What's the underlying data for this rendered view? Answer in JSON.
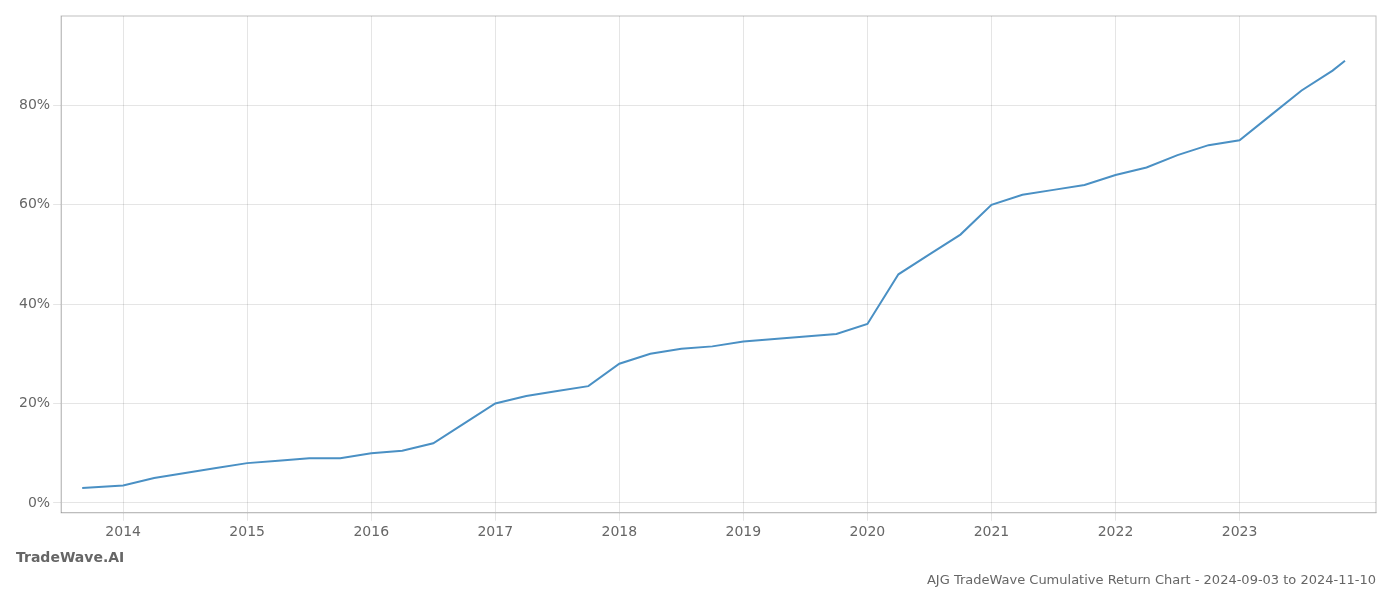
{
  "chart_data": {
    "type": "line",
    "title": "AJG TradeWave Cumulative Return Chart - 2024-09-03 to 2024-11-10",
    "annotations": [
      "TradeWave.AI"
    ],
    "x": [
      2013.67,
      2014.0,
      2014.25,
      2014.5,
      2014.75,
      2015.0,
      2015.25,
      2015.5,
      2015.75,
      2016.0,
      2016.25,
      2016.5,
      2016.75,
      2017.0,
      2017.25,
      2017.5,
      2017.75,
      2018.0,
      2018.25,
      2018.5,
      2018.75,
      2019.0,
      2019.25,
      2019.5,
      2019.75,
      2020.0,
      2020.25,
      2020.5,
      2020.75,
      2021.0,
      2021.25,
      2021.5,
      2021.75,
      2022.0,
      2022.25,
      2022.5,
      2022.75,
      2023.0,
      2023.25,
      2023.5,
      2023.75,
      2023.85
    ],
    "values": [
      0.03,
      0.035,
      0.05,
      0.06,
      0.07,
      0.08,
      0.085,
      0.09,
      0.09,
      0.1,
      0.105,
      0.12,
      0.16,
      0.2,
      0.215,
      0.225,
      0.235,
      0.28,
      0.3,
      0.31,
      0.315,
      0.325,
      0.33,
      0.335,
      0.34,
      0.36,
      0.46,
      0.5,
      0.54,
      0.6,
      0.62,
      0.63,
      0.64,
      0.66,
      0.675,
      0.7,
      0.72,
      0.73,
      0.78,
      0.83,
      0.87,
      0.89
    ],
    "color": "#4a90c4",
    "xlim": [
      2013.5,
      2024.1
    ],
    "ylim": [
      -0.02,
      0.98
    ],
    "xticks": [
      2014,
      2015,
      2016,
      2017,
      2018,
      2019,
      2020,
      2021,
      2022,
      2023
    ],
    "yticks": [
      {
        "value": 0.0,
        "label": "0%"
      },
      {
        "value": 0.2,
        "label": "20%"
      },
      {
        "value": 0.4,
        "label": "40%"
      },
      {
        "value": 0.6,
        "label": "60%"
      },
      {
        "value": 0.8,
        "label": "80%"
      }
    ],
    "grid": true
  }
}
